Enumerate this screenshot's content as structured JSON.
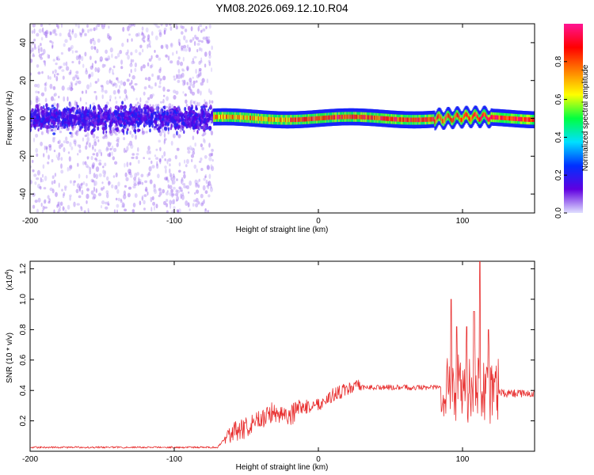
{
  "chart_data": [
    {
      "type": "heatmap",
      "title": "YM08.2026.069.12.10.R04",
      "xlabel": "Height of straight line (km)",
      "ylabel": "Frequency (Hz)",
      "xlim": [
        -200,
        150
      ],
      "ylim": [
        -50,
        50
      ],
      "x_ticks": [
        -200,
        -100,
        0,
        100
      ],
      "x_tick_labels": [
        "-200",
        "-100",
        "0",
        "100"
      ],
      "y_ticks": [
        -40,
        -20,
        0,
        20,
        40
      ],
      "y_tick_labels": [
        "-40",
        "-20",
        "0",
        "20",
        "40"
      ],
      "colorbar": {
        "label": "Normalized spectral amplitude",
        "range": [
          0,
          1
        ],
        "ticks": [
          0.0,
          0.2,
          0.4,
          0.6,
          0.8
        ],
        "tick_labels": [
          "0.0",
          "0.2",
          "0.4",
          "0.6",
          "0.8"
        ],
        "colors": [
          "#e0e0ff",
          "#6000e0",
          "#0030ff",
          "#00e0ff",
          "#00ff40",
          "#ffff00",
          "#ff8000",
          "#ff0000",
          "#ff1493"
        ]
      },
      "description_bands": [
        {
          "x_range": [
            -200,
            -73
          ],
          "freq_spread_hz": 50,
          "core_hz": 8,
          "amplitude": "low (0.05-0.3)"
        },
        {
          "x_range": [
            -73,
            150
          ],
          "freq_spread_hz": 4,
          "core_hz": 1.5,
          "amplitude": "high (0.6-1.0)"
        }
      ]
    },
    {
      "type": "line",
      "xlabel": "Height of straight line (km)",
      "ylabel": "SNR (10 * v/v)",
      "scale_label": "(x10",
      "scale_exp": "4",
      "scale_close": ")",
      "xlim": [
        -200,
        150
      ],
      "ylim": [
        0,
        1.25
      ],
      "x_ticks": [
        -200,
        -100,
        0,
        100
      ],
      "x_tick_labels": [
        "-200",
        "-100",
        "0",
        "100"
      ],
      "y_ticks": [
        0.2,
        0.4,
        0.6,
        0.8,
        1.0,
        1.2
      ],
      "y_tick_labels": [
        "0.2",
        "0.4",
        "0.6",
        "0.8",
        "1.0",
        "1.2"
      ],
      "color": "#e83030",
      "series": [
        {
          "name": "SNR",
          "x": [
            -200,
            -150,
            -100,
            -70,
            -63,
            -55,
            -45,
            -40,
            -30,
            -20,
            -10,
            0,
            10,
            20,
            30,
            40,
            50,
            60,
            70,
            80,
            85,
            90,
            95,
            100,
            105,
            110,
            115,
            120,
            130,
            140,
            150
          ],
          "y": [
            0.02,
            0.02,
            0.02,
            0.02,
            0.1,
            0.12,
            0.16,
            0.2,
            0.25,
            0.22,
            0.28,
            0.3,
            0.36,
            0.4,
            0.42,
            0.42,
            0.42,
            0.42,
            0.42,
            0.42,
            0.42,
            0.45,
            0.4,
            0.45,
            0.4,
            0.45,
            0.4,
            0.4,
            0.38,
            0.38,
            0.38
          ],
          "peaks": [
            {
              "x": 92,
              "y": 1.0
            },
            {
              "x": 96,
              "y": 0.82
            },
            {
              "x": 103,
              "y": 0.82
            },
            {
              "x": 108,
              "y": 0.92
            },
            {
              "x": 112,
              "y": 1.25
            },
            {
              "x": 118,
              "y": 0.8
            }
          ]
        }
      ]
    }
  ]
}
